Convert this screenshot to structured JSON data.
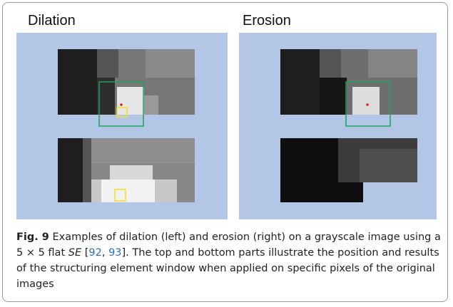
{
  "panels": [
    {
      "title": "Dilation"
    },
    {
      "title": "Erosion"
    }
  ],
  "caption": {
    "label": "Fig. 9",
    "before": " Examples of dilation (left) and erosion (right) on a grayscale image using a 5 × 5 flat ",
    "emphasis": "SE",
    "ref_open": " [",
    "refs": [
      "92",
      "93"
    ],
    "ref_sep": ", ",
    "after": "]. The top and bottom parts illustrate the position and results of the structuring element window when applied on specific pixels of the original images"
  }
}
